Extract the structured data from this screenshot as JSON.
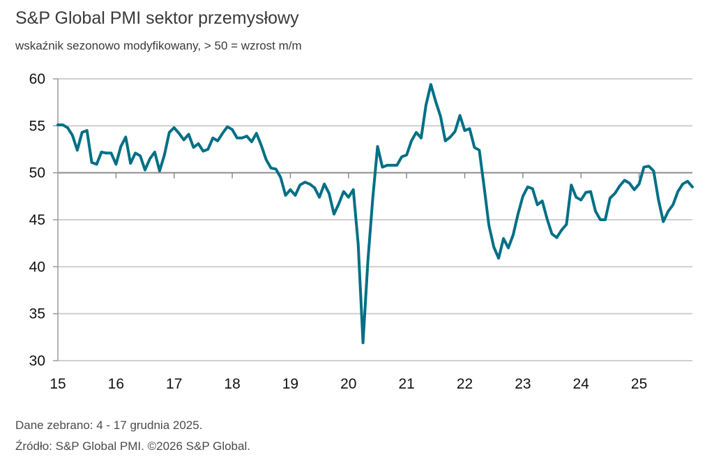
{
  "title": "S&P Global PMI sektor przemysłowy",
  "subtitle": "wskaźnik sezonowo modyfikowany, > 50 = wzrost m/m",
  "footer": {
    "line1": "Dane zebrano: 4 - 17 grudnia 2025.",
    "line2": "Źródło: S&P Global PMI. ©2026 S&P Global."
  },
  "chart_data": {
    "type": "line",
    "title": "S&P Global PMI sektor przemysłowy",
    "subtitle": "wskaźnik sezonowo modyfikowany, > 50 = wzrost m/m",
    "x_start": "2015-01",
    "x_end": "2025-12",
    "frequency": "monthly",
    "ylim": [
      30,
      60
    ],
    "yticks": [
      "30",
      "35",
      "40",
      "45",
      "50",
      "55",
      "60"
    ],
    "xticks": [
      "15",
      "16",
      "17",
      "18",
      "19",
      "20",
      "21",
      "22",
      "23",
      "24",
      "25"
    ],
    "grid": true,
    "reference_line": 50,
    "line_color": "#006f85",
    "series": [
      {
        "values": [
          55.1,
          55.1,
          54.8,
          54.0,
          52.4,
          54.3,
          54.5,
          51.1,
          50.9,
          52.2,
          52.1,
          52.1,
          50.9,
          52.8,
          53.8,
          51.0,
          52.1,
          51.8,
          50.3,
          51.5,
          52.2,
          50.2,
          51.9,
          54.3,
          54.8,
          54.2,
          53.5,
          54.1,
          52.7,
          53.1,
          52.3,
          52.5,
          53.7,
          53.4,
          54.2,
          54.9,
          54.6,
          53.7,
          53.7,
          53.9,
          53.3,
          54.2,
          52.9,
          51.4,
          50.5,
          50.4,
          49.5,
          47.6,
          48.2,
          47.6,
          48.7,
          49.0,
          48.8,
          48.4,
          47.4,
          48.8,
          47.8,
          45.6,
          46.7,
          48.0,
          47.4,
          48.2,
          42.4,
          31.9,
          40.6,
          47.2,
          52.8,
          50.6,
          50.8,
          50.8,
          50.8,
          51.7,
          51.9,
          53.4,
          54.3,
          53.7,
          57.2,
          59.4,
          57.6,
          56.0,
          53.4,
          53.8,
          54.4,
          56.1,
          54.5,
          54.7,
          52.7,
          52.4,
          48.5,
          44.4,
          42.1,
          40.9,
          43.0,
          42.0,
          43.4,
          45.6,
          47.5,
          48.5,
          48.3,
          46.6,
          47.0,
          45.1,
          43.5,
          43.1,
          43.9,
          44.5,
          48.7,
          47.4,
          47.1,
          47.9,
          48.0,
          45.9,
          45.0,
          45.0,
          47.3,
          47.8,
          48.6,
          49.2,
          48.9,
          48.2,
          48.8,
          50.6,
          50.7,
          50.2,
          47.1,
          44.8,
          45.9,
          46.6,
          48.0,
          48.8,
          49.1,
          48.5
        ]
      }
    ]
  }
}
